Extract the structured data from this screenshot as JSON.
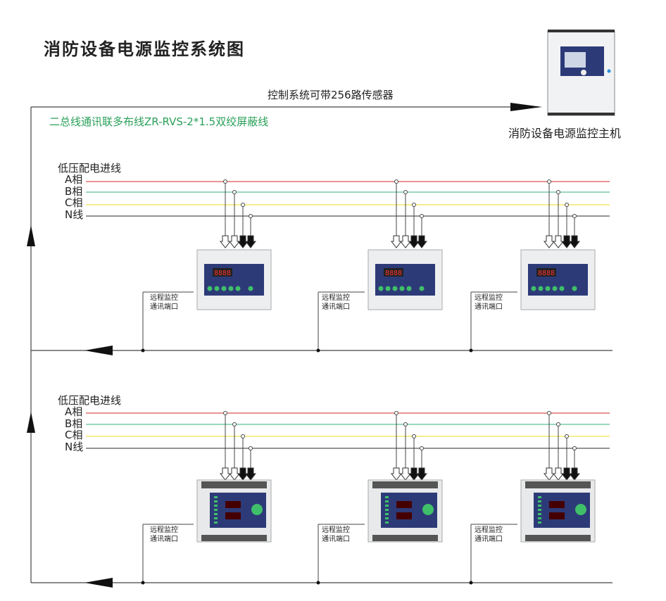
{
  "title": "消防设备电源监控系统图",
  "host": {
    "caption": "消防设备电源监控主机"
  },
  "top_label": "控制系统可带256路传感器",
  "bus_label": "二总线通讯联多布线ZR-RVS-2*1.5双绞屏蔽线",
  "colors": {
    "phase_a": "#d9534f",
    "phase_b": "#5cbf94",
    "phase_c": "#f2e24a",
    "phase_n": "#555555",
    "bus_label": "#2aa05a",
    "panel": "#2d3a78"
  },
  "groups": [
    {
      "heading": "低压配电进线",
      "phases": [
        "A相",
        "B相",
        "C相",
        "N线"
      ],
      "port_label": [
        "远程监控",
        "通讯端口"
      ],
      "device_type": "din-rail-sensor"
    },
    {
      "heading": "低压配电进线",
      "phases": [
        "A相",
        "B相",
        "C相",
        "N线"
      ],
      "port_label": [
        "远程监控",
        "通讯端口"
      ],
      "device_type": "panel-sensor"
    }
  ]
}
